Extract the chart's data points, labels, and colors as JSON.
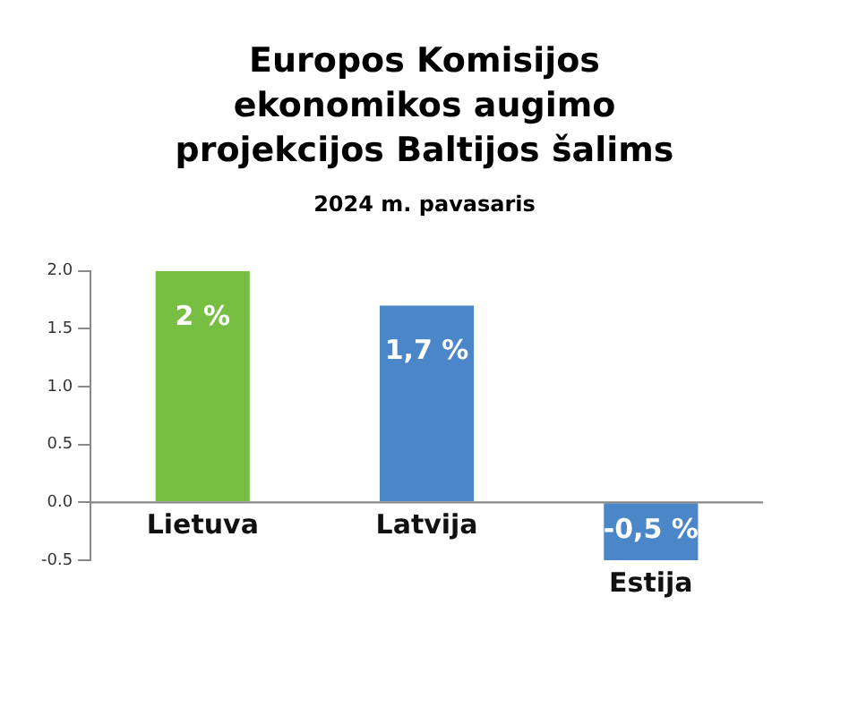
{
  "chart_data": {
    "type": "bar",
    "title": "Europos Komisijos ekonomikos augimo projekcijos Baltijos šalims",
    "subtitle": "2024 m. pavasaris",
    "categories": [
      "Lietuva",
      "Latvija",
      "Estija"
    ],
    "values": [
      2,
      1.7,
      -0.5
    ],
    "colors": [
      "#77bf43",
      "#4a86c8",
      "#4a86c8"
    ],
    "value_labels": [
      "2 %",
      "1,7 %",
      "-0,5 %"
    ],
    "ylim": [
      -0.5,
      2
    ],
    "yticks": [
      {
        "value": -0.5,
        "label": "-0.5"
      },
      {
        "value": 0,
        "label": "0.0"
      },
      {
        "value": 0.5,
        "label": "0.5"
      },
      {
        "value": 1,
        "label": "1.0"
      },
      {
        "value": 1.5,
        "label": "1.5"
      },
      {
        "value": 2,
        "label": "2.0"
      }
    ],
    "grid": false,
    "legend": false
  }
}
